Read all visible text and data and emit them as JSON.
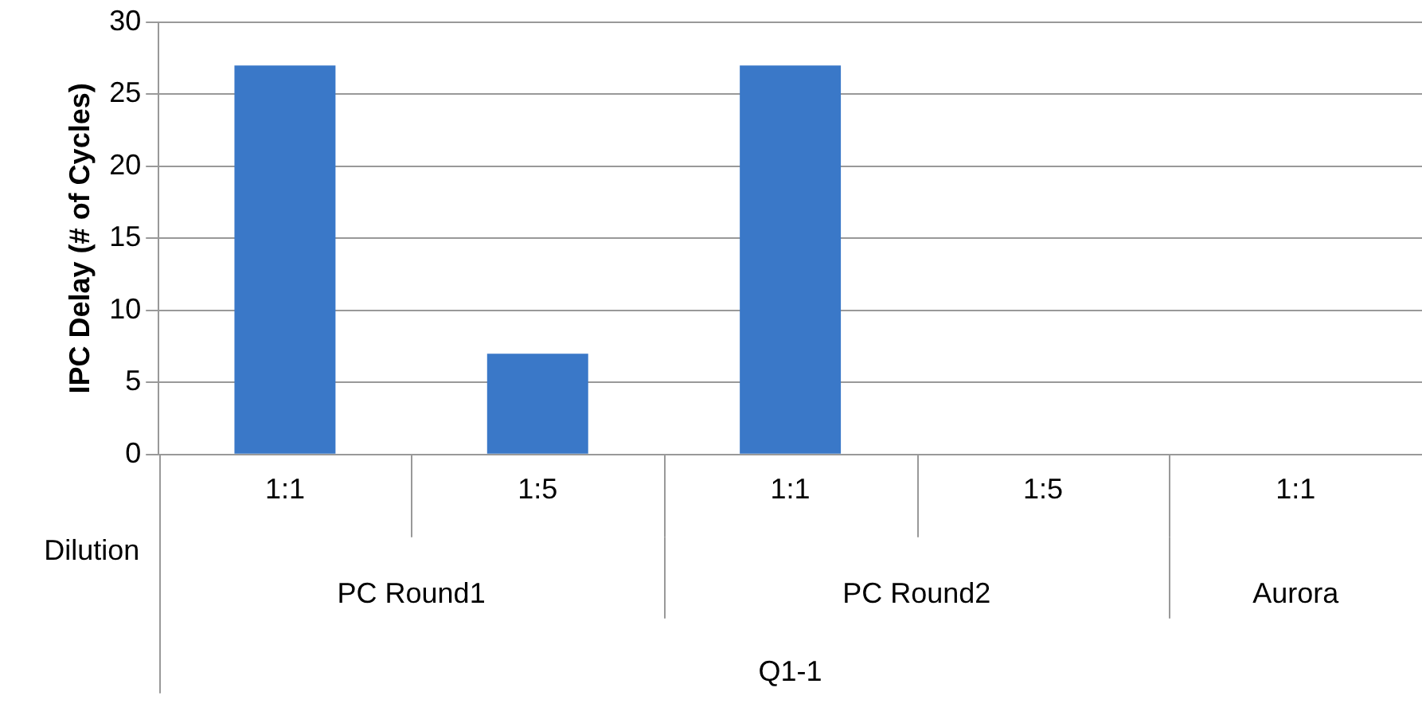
{
  "chart_data": {
    "type": "bar",
    "ylabel": "IPC Delay (# of Cycles)",
    "categories": [
      "1:1",
      "1:5",
      "1:1",
      "1:5",
      "1:1"
    ],
    "values": [
      27,
      7,
      27,
      null,
      0
    ],
    "color": "#3a78c8",
    "ylim": [
      0,
      30
    ],
    "yticks": [
      0,
      5,
      10,
      15,
      20,
      25,
      30
    ],
    "grid": "y",
    "annotations": [
      "Dilution",
      "PC Round1",
      "PC Round2",
      "Aurora",
      "Q1-1"
    ]
  }
}
